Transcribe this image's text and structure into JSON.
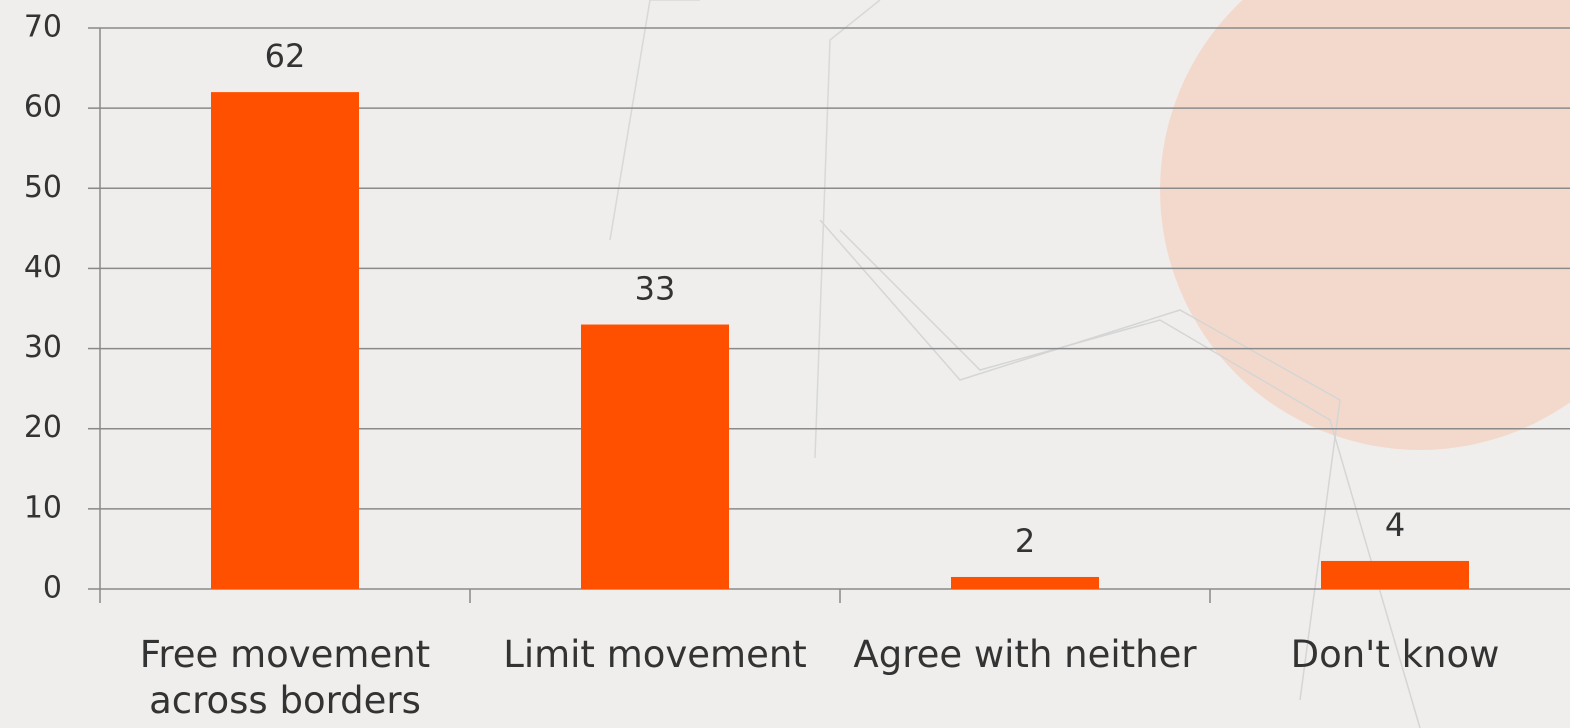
{
  "chart_data": {
    "type": "bar",
    "categories": [
      "Free movement across borders",
      "Limit movement",
      "Agree with neither",
      "Don't know"
    ],
    "values": [
      62,
      33,
      1.5,
      3.5
    ],
    "value_labels": [
      "62",
      "33",
      "2",
      "4"
    ],
    "color": "#ff5000",
    "ylim": [
      0,
      70
    ],
    "yticks": [
      0,
      10,
      20,
      30,
      40,
      50,
      60,
      70
    ],
    "grid": true
  }
}
